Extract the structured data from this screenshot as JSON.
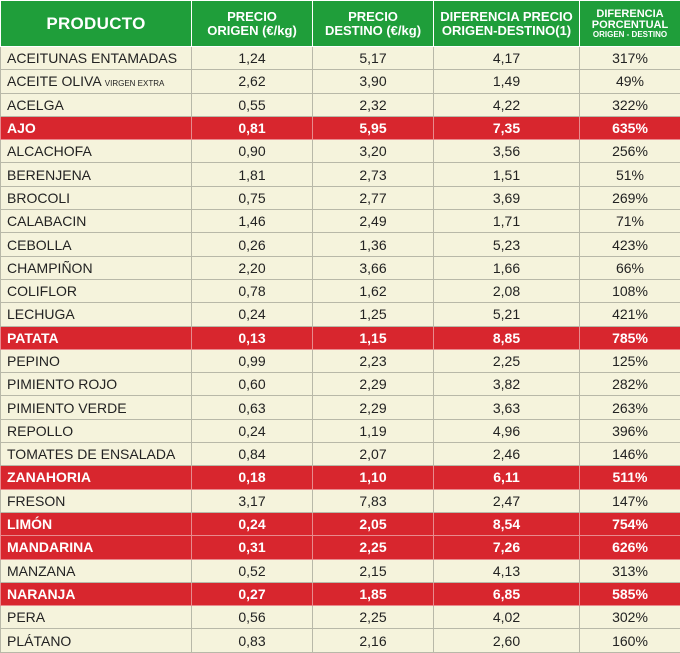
{
  "headers": {
    "producto": "PRODUCTO",
    "origen": [
      "PRECIO",
      "ORIGEN (€/kg)"
    ],
    "destino": [
      "PRECIO",
      "DESTINO (€/kg)"
    ],
    "diferencia": [
      "DIFERENCIA PRECIO",
      "ORIGEN-DESTINO(1)"
    ],
    "porcentual": [
      "DIFERENCIA",
      "PORCENTUAL",
      "ORIGEN - DESTINO"
    ]
  },
  "colors": {
    "header_bg": "#1f9e3a",
    "row_bg": "#f5f3dc",
    "highlight_bg": "#d8262e"
  },
  "rows": [
    {
      "name": "ACEITUNAS ENTAMADAS",
      "sub": "",
      "origen": "1,24",
      "destino": "5,17",
      "dif": "4,17",
      "pct": "317%",
      "hl": false
    },
    {
      "name": "ACEITE OLIVA ",
      "sub": "VIRGEN EXTRA",
      "origen": "2,62",
      "destino": "3,90",
      "dif": "1,49",
      "pct": "49%",
      "hl": false
    },
    {
      "name": "ACELGA",
      "sub": "",
      "origen": "0,55",
      "destino": "2,32",
      "dif": "4,22",
      "pct": "322%",
      "hl": false
    },
    {
      "name": "AJO",
      "sub": "",
      "origen": "0,81",
      "destino": "5,95",
      "dif": "7,35",
      "pct": "635%",
      "hl": true
    },
    {
      "name": "ALCACHOFA",
      "sub": "",
      "origen": "0,90",
      "destino": "3,20",
      "dif": "3,56",
      "pct": "256%",
      "hl": false
    },
    {
      "name": "BERENJENA",
      "sub": "",
      "origen": "1,81",
      "destino": "2,73",
      "dif": "1,51",
      "pct": "51%",
      "hl": false
    },
    {
      "name": "BROCOLI",
      "sub": "",
      "origen": "0,75",
      "destino": "2,77",
      "dif": "3,69",
      "pct": "269%",
      "hl": false
    },
    {
      "name": "CALABACIN",
      "sub": "",
      "origen": "1,46",
      "destino": "2,49",
      "dif": "1,71",
      "pct": "71%",
      "hl": false
    },
    {
      "name": "CEBOLLA",
      "sub": "",
      "origen": "0,26",
      "destino": "1,36",
      "dif": "5,23",
      "pct": "423%",
      "hl": false
    },
    {
      "name": "CHAMPIÑON",
      "sub": "",
      "origen": "2,20",
      "destino": "3,66",
      "dif": "1,66",
      "pct": "66%",
      "hl": false
    },
    {
      "name": "COLIFLOR",
      "sub": "",
      "origen": "0,78",
      "destino": "1,62",
      "dif": "2,08",
      "pct": "108%",
      "hl": false
    },
    {
      "name": "LECHUGA",
      "sub": "",
      "origen": "0,24",
      "destino": "1,25",
      "dif": "5,21",
      "pct": "421%",
      "hl": false
    },
    {
      "name": "PATATA",
      "sub": "",
      "origen": "0,13",
      "destino": "1,15",
      "dif": "8,85",
      "pct": "785%",
      "hl": true
    },
    {
      "name": "PEPINO",
      "sub": "",
      "origen": "0,99",
      "destino": "2,23",
      "dif": "2,25",
      "pct": "125%",
      "hl": false
    },
    {
      "name": "PIMIENTO ROJO",
      "sub": "",
      "origen": "0,60",
      "destino": "2,29",
      "dif": "3,82",
      "pct": "282%",
      "hl": false
    },
    {
      "name": "PIMIENTO VERDE",
      "sub": "",
      "origen": "0,63",
      "destino": "2,29",
      "dif": "3,63",
      "pct": "263%",
      "hl": false
    },
    {
      "name": "REPOLLO",
      "sub": "",
      "origen": "0,24",
      "destino": "1,19",
      "dif": "4,96",
      "pct": "396%",
      "hl": false
    },
    {
      "name": "TOMATES DE ENSALADA",
      "sub": "",
      "origen": "0,84",
      "destino": "2,07",
      "dif": "2,46",
      "pct": "146%",
      "hl": false
    },
    {
      "name": "ZANAHORIA",
      "sub": "",
      "origen": "0,18",
      "destino": "1,10",
      "dif": "6,11",
      "pct": "511%",
      "hl": true
    },
    {
      "name": "FRESON",
      "sub": "",
      "origen": "3,17",
      "destino": "7,83",
      "dif": "2,47",
      "pct": "147%",
      "hl": false
    },
    {
      "name": "LIMÓN",
      "sub": "",
      "origen": "0,24",
      "destino": "2,05",
      "dif": "8,54",
      "pct": "754%",
      "hl": true
    },
    {
      "name": "MANDARINA",
      "sub": "",
      "origen": "0,31",
      "destino": "2,25",
      "dif": "7,26",
      "pct": "626%",
      "hl": true
    },
    {
      "name": "MANZANA",
      "sub": "",
      "origen": "0,52",
      "destino": "2,15",
      "dif": "4,13",
      "pct": "313%",
      "hl": false
    },
    {
      "name": "NARANJA",
      "sub": "",
      "origen": "0,27",
      "destino": "1,85",
      "dif": "6,85",
      "pct": "585%",
      "hl": true
    },
    {
      "name": "PERA",
      "sub": "",
      "origen": "0,56",
      "destino": "2,25",
      "dif": "4,02",
      "pct": "302%",
      "hl": false
    },
    {
      "name": "PLÁTANO",
      "sub": "",
      "origen": "0,83",
      "destino": "2,16",
      "dif": "2,60",
      "pct": "160%",
      "hl": false
    }
  ]
}
